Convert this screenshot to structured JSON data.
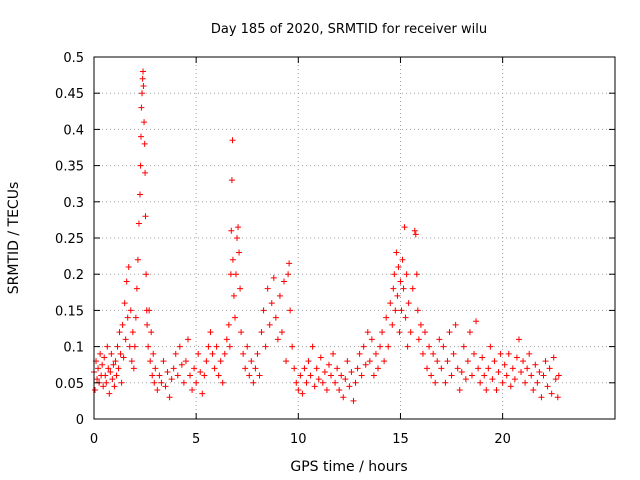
{
  "chart_data": {
    "type": "scatter",
    "title": "Day 185 of 2020, SRMTID for receiver wilu",
    "xlabel": "GPS time / hours",
    "ylabel": "SRMTID / TECUs",
    "xlim": [
      0,
      25.5
    ],
    "ylim": [
      0,
      0.5
    ],
    "grid": true,
    "marker": "plus",
    "color": "#ff0000",
    "x_ticks": [
      0,
      5,
      10,
      15,
      20
    ],
    "x_tick_labels": [
      "0",
      "5",
      "10",
      "15",
      "20"
    ],
    "y_ticks": [
      0,
      0.05,
      0.1,
      0.15,
      0.2,
      0.25,
      0.3,
      0.35,
      0.4,
      0.45,
      0.5
    ],
    "y_tick_labels": [
      "0",
      "0.05",
      "0.1",
      "0.15",
      "0.2",
      "0.25",
      "0.3",
      "0.35",
      "0.4",
      "0.45",
      "0.5"
    ],
    "series": [
      {
        "name": "SRMTID",
        "points": [
          [
            0.0,
            0.065
          ],
          [
            0.05,
            0.04
          ],
          [
            0.1,
            0.08
          ],
          [
            0.15,
            0.055
          ],
          [
            0.2,
            0.07
          ],
          [
            0.25,
            0.05
          ],
          [
            0.3,
            0.09
          ],
          [
            0.35,
            0.06
          ],
          [
            0.4,
            0.075
          ],
          [
            0.45,
            0.045
          ],
          [
            0.5,
            0.085
          ],
          [
            0.55,
            0.06
          ],
          [
            0.6,
            0.05
          ],
          [
            0.65,
            0.1
          ],
          [
            0.7,
            0.07
          ],
          [
            0.75,
            0.035
          ],
          [
            0.8,
            0.065
          ],
          [
            0.85,
            0.09
          ],
          [
            0.9,
            0.055
          ],
          [
            0.95,
            0.075
          ],
          [
            1.0,
            0.045
          ],
          [
            1.05,
            0.08
          ],
          [
            1.1,
            0.06
          ],
          [
            1.15,
            0.1
          ],
          [
            1.2,
            0.07
          ],
          [
            1.25,
            0.12
          ],
          [
            1.3,
            0.09
          ],
          [
            1.35,
            0.05
          ],
          [
            1.4,
            0.13
          ],
          [
            1.45,
            0.085
          ],
          [
            1.5,
            0.16
          ],
          [
            1.55,
            0.11
          ],
          [
            1.6,
            0.19
          ],
          [
            1.65,
            0.14
          ],
          [
            1.7,
            0.21
          ],
          [
            1.75,
            0.1
          ],
          [
            1.8,
            0.15
          ],
          [
            1.85,
            0.08
          ],
          [
            1.9,
            0.12
          ],
          [
            1.95,
            0.07
          ],
          [
            2.0,
            0.1
          ],
          [
            2.05,
            0.14
          ],
          [
            2.1,
            0.18
          ],
          [
            2.15,
            0.22
          ],
          [
            2.2,
            0.27
          ],
          [
            2.25,
            0.31
          ],
          [
            2.28,
            0.35
          ],
          [
            2.3,
            0.39
          ],
          [
            2.32,
            0.43
          ],
          [
            2.35,
            0.45
          ],
          [
            2.38,
            0.47
          ],
          [
            2.4,
            0.48
          ],
          [
            2.42,
            0.46
          ],
          [
            2.45,
            0.41
          ],
          [
            2.48,
            0.38
          ],
          [
            2.5,
            0.34
          ],
          [
            2.52,
            0.28
          ],
          [
            2.55,
            0.2
          ],
          [
            2.58,
            0.15
          ],
          [
            2.6,
            0.13
          ],
          [
            2.65,
            0.1
          ],
          [
            2.7,
            0.15
          ],
          [
            2.75,
            0.08
          ],
          [
            2.8,
            0.12
          ],
          [
            2.85,
            0.06
          ],
          [
            2.9,
            0.09
          ],
          [
            2.95,
            0.05
          ],
          [
            3.0,
            0.07
          ],
          [
            3.1,
            0.04
          ],
          [
            3.2,
            0.06
          ],
          [
            3.3,
            0.05
          ],
          [
            3.4,
            0.08
          ],
          [
            3.5,
            0.045
          ],
          [
            3.6,
            0.065
          ],
          [
            3.7,
            0.03
          ],
          [
            3.8,
            0.055
          ],
          [
            3.9,
            0.07
          ],
          [
            4.0,
            0.09
          ],
          [
            4.1,
            0.06
          ],
          [
            4.2,
            0.1
          ],
          [
            4.3,
            0.075
          ],
          [
            4.4,
            0.05
          ],
          [
            4.5,
            0.08
          ],
          [
            4.6,
            0.11
          ],
          [
            4.7,
            0.06
          ],
          [
            4.8,
            0.04
          ],
          [
            4.9,
            0.07
          ],
          [
            5.0,
            0.05
          ],
          [
            5.1,
            0.09
          ],
          [
            5.2,
            0.065
          ],
          [
            5.3,
            0.035
          ],
          [
            5.4,
            0.06
          ],
          [
            5.5,
            0.08
          ],
          [
            5.6,
            0.1
          ],
          [
            5.7,
            0.12
          ],
          [
            5.8,
            0.09
          ],
          [
            5.9,
            0.07
          ],
          [
            6.0,
            0.1
          ],
          [
            6.1,
            0.06
          ],
          [
            6.2,
            0.08
          ],
          [
            6.3,
            0.05
          ],
          [
            6.4,
            0.09
          ],
          [
            6.5,
            0.11
          ],
          [
            6.6,
            0.13
          ],
          [
            6.65,
            0.1
          ],
          [
            6.7,
            0.2
          ],
          [
            6.72,
            0.26
          ],
          [
            6.75,
            0.33
          ],
          [
            6.78,
            0.385
          ],
          [
            6.8,
            0.22
          ],
          [
            6.85,
            0.17
          ],
          [
            6.9,
            0.14
          ],
          [
            6.95,
            0.2
          ],
          [
            7.0,
            0.25
          ],
          [
            7.05,
            0.265
          ],
          [
            7.1,
            0.23
          ],
          [
            7.15,
            0.18
          ],
          [
            7.2,
            0.12
          ],
          [
            7.3,
            0.09
          ],
          [
            7.4,
            0.07
          ],
          [
            7.5,
            0.1
          ],
          [
            7.6,
            0.06
          ],
          [
            7.7,
            0.08
          ],
          [
            7.8,
            0.05
          ],
          [
            7.9,
            0.07
          ],
          [
            8.0,
            0.09
          ],
          [
            8.1,
            0.06
          ],
          [
            8.2,
            0.12
          ],
          [
            8.3,
            0.15
          ],
          [
            8.4,
            0.1
          ],
          [
            8.5,
            0.18
          ],
          [
            8.6,
            0.13
          ],
          [
            8.7,
            0.16
          ],
          [
            8.8,
            0.195
          ],
          [
            8.9,
            0.14
          ],
          [
            9.0,
            0.11
          ],
          [
            9.1,
            0.17
          ],
          [
            9.2,
            0.12
          ],
          [
            9.3,
            0.19
          ],
          [
            9.4,
            0.08
          ],
          [
            9.5,
            0.2
          ],
          [
            9.55,
            0.215
          ],
          [
            9.6,
            0.15
          ],
          [
            9.7,
            0.1
          ],
          [
            9.8,
            0.07
          ],
          [
            9.9,
            0.05
          ],
          [
            10.0,
            0.04
          ],
          [
            10.1,
            0.06
          ],
          [
            10.2,
            0.035
          ],
          [
            10.3,
            0.07
          ],
          [
            10.4,
            0.05
          ],
          [
            10.5,
            0.08
          ],
          [
            10.6,
            0.06
          ],
          [
            10.7,
            0.1
          ],
          [
            10.8,
            0.045
          ],
          [
            10.9,
            0.07
          ],
          [
            11.0,
            0.055
          ],
          [
            11.1,
            0.085
          ],
          [
            11.2,
            0.05
          ],
          [
            11.3,
            0.065
          ],
          [
            11.4,
            0.04
          ],
          [
            11.5,
            0.075
          ],
          [
            11.6,
            0.06
          ],
          [
            11.7,
            0.09
          ],
          [
            11.8,
            0.05
          ],
          [
            11.9,
            0.07
          ],
          [
            12.0,
            0.04
          ],
          [
            12.1,
            0.06
          ],
          [
            12.2,
            0.03
          ],
          [
            12.3,
            0.055
          ],
          [
            12.4,
            0.08
          ],
          [
            12.5,
            0.045
          ],
          [
            12.6,
            0.065
          ],
          [
            12.7,
            0.025
          ],
          [
            12.8,
            0.05
          ],
          [
            12.9,
            0.07
          ],
          [
            13.0,
            0.09
          ],
          [
            13.1,
            0.06
          ],
          [
            13.2,
            0.1
          ],
          [
            13.3,
            0.075
          ],
          [
            13.4,
            0.12
          ],
          [
            13.5,
            0.08
          ],
          [
            13.6,
            0.11
          ],
          [
            13.7,
            0.06
          ],
          [
            13.8,
            0.09
          ],
          [
            13.9,
            0.07
          ],
          [
            14.0,
            0.1
          ],
          [
            14.1,
            0.12
          ],
          [
            14.2,
            0.08
          ],
          [
            14.3,
            0.14
          ],
          [
            14.4,
            0.1
          ],
          [
            14.5,
            0.16
          ],
          [
            14.6,
            0.13
          ],
          [
            14.65,
            0.18
          ],
          [
            14.7,
            0.2
          ],
          [
            14.75,
            0.15
          ],
          [
            14.8,
            0.23
          ],
          [
            14.85,
            0.17
          ],
          [
            14.9,
            0.21
          ],
          [
            14.95,
            0.12
          ],
          [
            15.0,
            0.19
          ],
          [
            15.05,
            0.15
          ],
          [
            15.1,
            0.22
          ],
          [
            15.15,
            0.18
          ],
          [
            15.2,
            0.265
          ],
          [
            15.25,
            0.14
          ],
          [
            15.3,
            0.2
          ],
          [
            15.35,
            0.1
          ],
          [
            15.4,
            0.16
          ],
          [
            15.5,
            0.12
          ],
          [
            15.6,
            0.18
          ],
          [
            15.7,
            0.26
          ],
          [
            15.75,
            0.255
          ],
          [
            15.8,
            0.2
          ],
          [
            15.85,
            0.15
          ],
          [
            15.9,
            0.11
          ],
          [
            16.0,
            0.13
          ],
          [
            16.1,
            0.09
          ],
          [
            16.2,
            0.12
          ],
          [
            16.3,
            0.07
          ],
          [
            16.4,
            0.1
          ],
          [
            16.5,
            0.06
          ],
          [
            16.6,
            0.09
          ],
          [
            16.7,
            0.05
          ],
          [
            16.8,
            0.08
          ],
          [
            16.9,
            0.11
          ],
          [
            17.0,
            0.07
          ],
          [
            17.1,
            0.1
          ],
          [
            17.2,
            0.05
          ],
          [
            17.3,
            0.08
          ],
          [
            17.4,
            0.12
          ],
          [
            17.5,
            0.06
          ],
          [
            17.6,
            0.09
          ],
          [
            17.7,
            0.13
          ],
          [
            17.8,
            0.07
          ],
          [
            17.9,
            0.04
          ],
          [
            18.0,
            0.065
          ],
          [
            18.1,
            0.1
          ],
          [
            18.2,
            0.055
          ],
          [
            18.3,
            0.08
          ],
          [
            18.4,
            0.12
          ],
          [
            18.5,
            0.06
          ],
          [
            18.6,
            0.09
          ],
          [
            18.7,
            0.135
          ],
          [
            18.8,
            0.07
          ],
          [
            18.9,
            0.05
          ],
          [
            19.0,
            0.085
          ],
          [
            19.1,
            0.06
          ],
          [
            19.2,
            0.04
          ],
          [
            19.3,
            0.07
          ],
          [
            19.4,
            0.1
          ],
          [
            19.5,
            0.055
          ],
          [
            19.6,
            0.08
          ],
          [
            19.7,
            0.04
          ],
          [
            19.8,
            0.065
          ],
          [
            19.9,
            0.09
          ],
          [
            20.0,
            0.05
          ],
          [
            20.1,
            0.075
          ],
          [
            20.2,
            0.06
          ],
          [
            20.3,
            0.09
          ],
          [
            20.4,
            0.045
          ],
          [
            20.5,
            0.07
          ],
          [
            20.6,
            0.055
          ],
          [
            20.7,
            0.085
          ],
          [
            20.8,
            0.11
          ],
          [
            20.9,
            0.065
          ],
          [
            21.0,
            0.08
          ],
          [
            21.1,
            0.05
          ],
          [
            21.2,
            0.07
          ],
          [
            21.3,
            0.09
          ],
          [
            21.4,
            0.06
          ],
          [
            21.5,
            0.04
          ],
          [
            21.6,
            0.075
          ],
          [
            21.7,
            0.05
          ],
          [
            21.8,
            0.065
          ],
          [
            21.9,
            0.03
          ],
          [
            22.0,
            0.06
          ],
          [
            22.1,
            0.08
          ],
          [
            22.2,
            0.045
          ],
          [
            22.3,
            0.07
          ],
          [
            22.4,
            0.035
          ],
          [
            22.5,
            0.085
          ],
          [
            22.6,
            0.055
          ],
          [
            22.7,
            0.03
          ],
          [
            22.75,
            0.06
          ]
        ]
      }
    ]
  }
}
